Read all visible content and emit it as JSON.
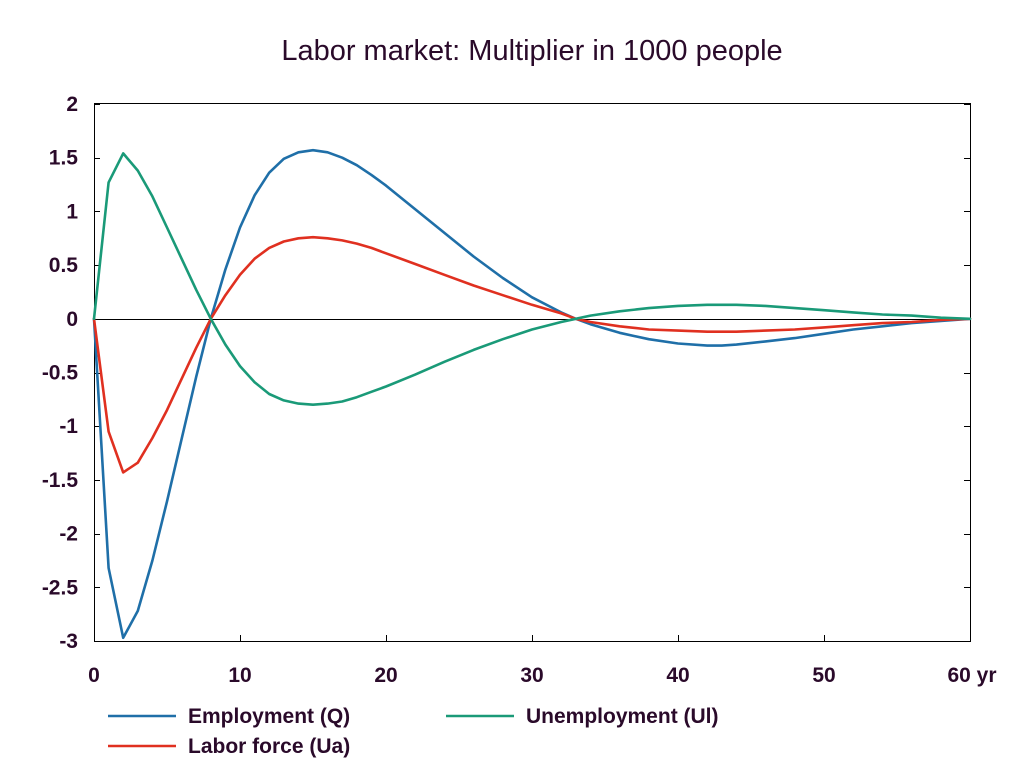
{
  "chart_data": {
    "type": "line",
    "title": "Labor market: Multiplier in 1000 people",
    "xlabel": "",
    "ylabel": "",
    "xlim": [
      0,
      60
    ],
    "ylim": [
      -3,
      2
    ],
    "x_ticks": [
      0,
      10,
      20,
      30,
      40,
      50,
      60
    ],
    "x_tick_labels": [
      "0",
      "10",
      "20",
      "30",
      "40",
      "50",
      "60 yr"
    ],
    "y_ticks": [
      2,
      1.5,
      1,
      0.5,
      0,
      -0.5,
      -1,
      -1.5,
      -2,
      -2.5,
      -3
    ],
    "y_tick_labels": [
      "2",
      "1.5",
      "1",
      "0.5",
      "0",
      "-0.5",
      "-1",
      "-1.5",
      "-2",
      "-2.5",
      "-3"
    ],
    "grid": false,
    "zero_line": true,
    "legend_position": "bottom",
    "series": [
      {
        "name": "Employment (Q)",
        "color": "#1f6fa8",
        "points": [
          [
            0,
            0
          ],
          [
            1,
            -2.32
          ],
          [
            2,
            -2.97
          ],
          [
            3,
            -2.72
          ],
          [
            4,
            -2.25
          ],
          [
            5,
            -1.7
          ],
          [
            6,
            -1.12
          ],
          [
            7,
            -0.54
          ],
          [
            8,
            0
          ],
          [
            9,
            0.46
          ],
          [
            10,
            0.85
          ],
          [
            11,
            1.15
          ],
          [
            12,
            1.36
          ],
          [
            13,
            1.49
          ],
          [
            14,
            1.55
          ],
          [
            15,
            1.57
          ],
          [
            16,
            1.55
          ],
          [
            17,
            1.5
          ],
          [
            18,
            1.43
          ],
          [
            19,
            1.34
          ],
          [
            20,
            1.24
          ],
          [
            22,
            1.02
          ],
          [
            24,
            0.8
          ],
          [
            26,
            0.58
          ],
          [
            28,
            0.38
          ],
          [
            30,
            0.2
          ],
          [
            32,
            0.06
          ],
          [
            33,
            0
          ],
          [
            34,
            -0.05
          ],
          [
            36,
            -0.13
          ],
          [
            38,
            -0.19
          ],
          [
            40,
            -0.23
          ],
          [
            42,
            -0.25
          ],
          [
            43,
            -0.25
          ],
          [
            44,
            -0.24
          ],
          [
            46,
            -0.21
          ],
          [
            48,
            -0.18
          ],
          [
            50,
            -0.14
          ],
          [
            52,
            -0.1
          ],
          [
            54,
            -0.07
          ],
          [
            56,
            -0.04
          ],
          [
            58,
            -0.02
          ],
          [
            60,
            0
          ]
        ]
      },
      {
        "name": "Labor force (Ua)",
        "color": "#e03020",
        "points": [
          [
            0,
            0
          ],
          [
            1,
            -1.05
          ],
          [
            2,
            -1.43
          ],
          [
            3,
            -1.34
          ],
          [
            4,
            -1.11
          ],
          [
            5,
            -0.85
          ],
          [
            6,
            -0.56
          ],
          [
            7,
            -0.27
          ],
          [
            8,
            0
          ],
          [
            9,
            0.22
          ],
          [
            10,
            0.41
          ],
          [
            11,
            0.56
          ],
          [
            12,
            0.66
          ],
          [
            13,
            0.72
          ],
          [
            14,
            0.75
          ],
          [
            15,
            0.76
          ],
          [
            16,
            0.75
          ],
          [
            17,
            0.73
          ],
          [
            18,
            0.7
          ],
          [
            19,
            0.66
          ],
          [
            20,
            0.61
          ],
          [
            22,
            0.51
          ],
          [
            24,
            0.41
          ],
          [
            26,
            0.31
          ],
          [
            28,
            0.22
          ],
          [
            30,
            0.13
          ],
          [
            32,
            0.05
          ],
          [
            33,
            0
          ],
          [
            34,
            -0.03
          ],
          [
            36,
            -0.07
          ],
          [
            38,
            -0.1
          ],
          [
            40,
            -0.11
          ],
          [
            42,
            -0.12
          ],
          [
            44,
            -0.12
          ],
          [
            46,
            -0.11
          ],
          [
            48,
            -0.1
          ],
          [
            50,
            -0.08
          ],
          [
            52,
            -0.06
          ],
          [
            54,
            -0.04
          ],
          [
            56,
            -0.03
          ],
          [
            58,
            -0.01
          ],
          [
            60,
            0
          ]
        ]
      },
      {
        "name": "Unemployment (Ul)",
        "color": "#1a9a78",
        "points": [
          [
            0,
            0
          ],
          [
            1,
            1.27
          ],
          [
            2,
            1.54
          ],
          [
            3,
            1.38
          ],
          [
            4,
            1.14
          ],
          [
            5,
            0.85
          ],
          [
            6,
            0.56
          ],
          [
            7,
            0.27
          ],
          [
            8,
            0
          ],
          [
            9,
            -0.24
          ],
          [
            10,
            -0.44
          ],
          [
            11,
            -0.59
          ],
          [
            12,
            -0.7
          ],
          [
            13,
            -0.76
          ],
          [
            14,
            -0.79
          ],
          [
            15,
            -0.8
          ],
          [
            16,
            -0.79
          ],
          [
            17,
            -0.77
          ],
          [
            18,
            -0.73
          ],
          [
            19,
            -0.68
          ],
          [
            20,
            -0.63
          ],
          [
            22,
            -0.52
          ],
          [
            24,
            -0.4
          ],
          [
            26,
            -0.29
          ],
          [
            28,
            -0.19
          ],
          [
            30,
            -0.1
          ],
          [
            32,
            -0.03
          ],
          [
            33,
            0
          ],
          [
            34,
            0.03
          ],
          [
            36,
            0.07
          ],
          [
            38,
            0.1
          ],
          [
            40,
            0.12
          ],
          [
            42,
            0.13
          ],
          [
            43,
            0.13
          ],
          [
            44,
            0.13
          ],
          [
            46,
            0.12
          ],
          [
            48,
            0.1
          ],
          [
            50,
            0.08
          ],
          [
            52,
            0.06
          ],
          [
            54,
            0.04
          ],
          [
            56,
            0.03
          ],
          [
            58,
            0.01
          ],
          [
            60,
            0
          ]
        ]
      }
    ]
  }
}
